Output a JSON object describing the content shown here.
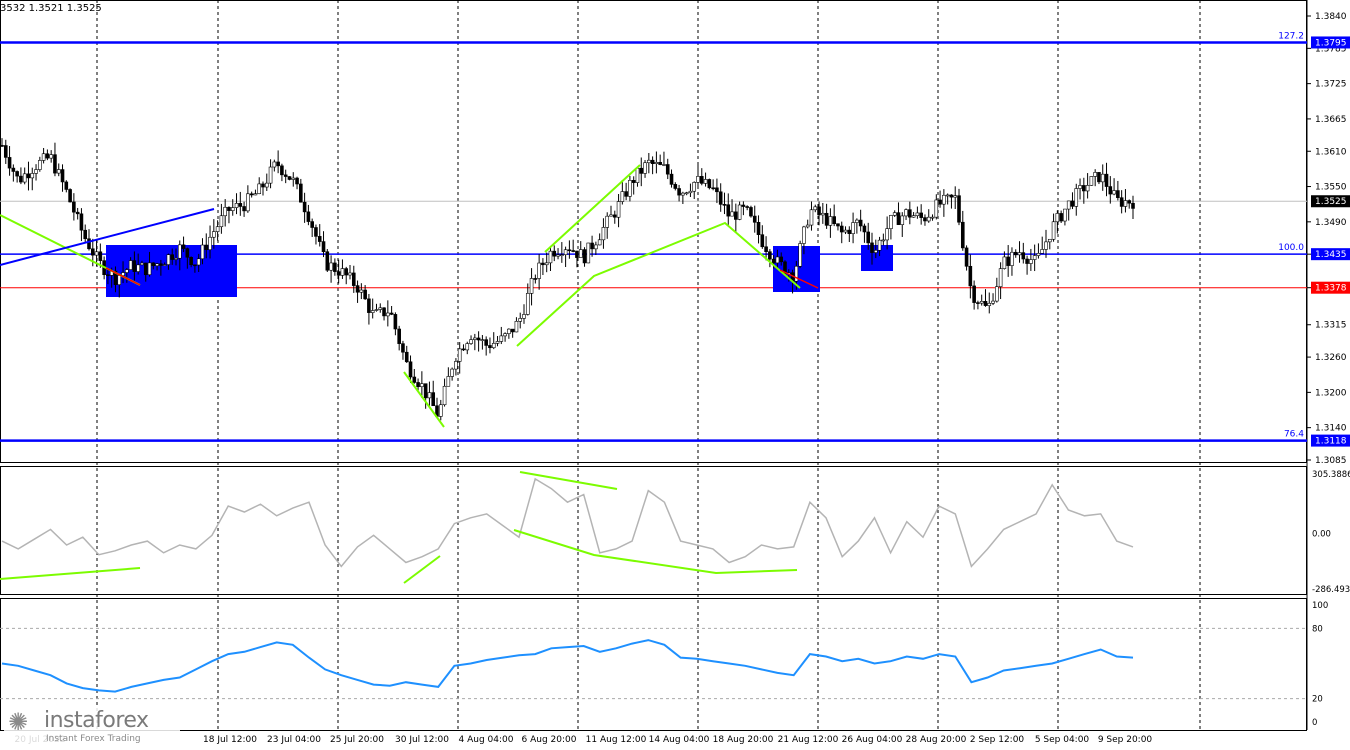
{
  "header": {
    "quote": "3532 1.3521 1.3525"
  },
  "colors": {
    "level": "#0000ff",
    "price_line": "#ff0000",
    "green": "#7cfc00",
    "cci": "#b4b4b4",
    "rsi": "#1e90ff",
    "candle": "#000000",
    "box": "#0000ff"
  },
  "logo": {
    "name": "instaforex",
    "tagline": "Instant Forex Trading",
    "icon": "gear-logo-icon"
  },
  "chart_data": [
    {
      "type": "candlestick",
      "symbol_quote": "3532 1.3521 1.3525",
      "ylim": [
        1.3055,
        1.387
      ],
      "y_ticks": [
        "1.3840",
        "1.3785",
        "1.3725",
        "1.3665",
        "1.3610",
        "1.3550",
        "1.3490",
        "1.3435",
        "1.3378",
        "1.3315",
        "1.3260",
        "1.3200",
        "1.3140",
        "1.3085"
      ],
      "x_ticks": [
        "20 Jul 2022",
        "18 Jul 12:00",
        "23 Jul 04:00",
        "25 Jul 20:00",
        "30 Jul 12:00",
        "4 Aug 04:00",
        "6 Aug 20:00",
        "11 Aug 12:00",
        "14 Aug 04:00",
        "18 Aug 20:00",
        "21 Aug 12:00",
        "26 Aug 04:00",
        "28 Aug 20:00",
        "2 Sep 12:00",
        "5 Sep 04:00",
        "9 Sep 20:00"
      ],
      "current_price": "1.3525",
      "price_line": "1.3378",
      "fib_levels": [
        {
          "ratio": "127.2",
          "value": "1.3795"
        },
        {
          "ratio": "100.0",
          "value": "1.3435"
        },
        {
          "ratio": "76.4",
          "value": "1.3118"
        }
      ],
      "close_path": [
        1.362,
        1.356,
        1.3585,
        1.36,
        1.354,
        1.347,
        1.342,
        1.3395,
        1.3415,
        1.341,
        1.3425,
        1.3445,
        1.342,
        1.347,
        1.351,
        1.352,
        1.3545,
        1.359,
        1.356,
        1.35,
        1.342,
        1.3405,
        1.338,
        1.333,
        1.334,
        1.325,
        1.321,
        1.316,
        1.326,
        1.33,
        1.328,
        1.329,
        1.332,
        1.34,
        1.344,
        1.345,
        1.343,
        1.347,
        1.351,
        1.356,
        1.359,
        1.358,
        1.354,
        1.356,
        1.3545,
        1.35,
        1.351,
        1.346,
        1.342,
        1.34,
        1.351,
        1.3495,
        1.347,
        1.349,
        1.344,
        1.349,
        1.3505,
        1.3495,
        1.352,
        1.353,
        1.337,
        1.334,
        1.342,
        1.344,
        1.342,
        1.348,
        1.352,
        1.355,
        1.357,
        1.3525,
        1.3525
      ]
    },
    {
      "type": "line",
      "name": "CCI",
      "ylim": [
        -286.493,
        305.3886
      ],
      "y_ticks": [
        "305.3886",
        "0.00",
        "-286.493"
      ],
      "series": [
        {
          "values": [
            -40,
            -80,
            -30,
            20,
            -60,
            -20,
            -110,
            -90,
            -60,
            -40,
            -100,
            -60,
            -80,
            -10,
            140,
            110,
            150,
            90,
            130,
            160,
            -60,
            -170,
            -70,
            -10,
            -80,
            -150,
            -120,
            -80,
            50,
            80,
            100,
            40,
            -20,
            280,
            230,
            160,
            200,
            -100,
            -80,
            -40,
            220,
            160,
            -40,
            -60,
            -80,
            -150,
            -120,
            -60,
            -80,
            -70,
            160,
            80,
            -120,
            -40,
            80,
            -100,
            60,
            -20,
            140,
            100,
            -170,
            -80,
            20,
            60,
            100,
            250,
            120,
            90,
            100,
            -40,
            -70
          ]
        }
      ]
    },
    {
      "type": "line",
      "name": "RSI",
      "ylim": [
        0,
        100
      ],
      "y_ticks": [
        "100",
        "80",
        "20",
        "0"
      ],
      "gridlines": [
        80,
        20
      ],
      "series": [
        {
          "values": [
            50,
            48,
            44,
            40,
            33,
            29,
            27,
            26,
            30,
            33,
            36,
            38,
            45,
            52,
            58,
            60,
            64,
            68,
            66,
            55,
            45,
            40,
            36,
            32,
            31,
            34,
            32,
            30,
            48,
            50,
            53,
            55,
            57,
            58,
            63,
            64,
            65,
            60,
            63,
            67,
            70,
            66,
            55,
            54,
            52,
            50,
            48,
            45,
            42,
            40,
            58,
            56,
            52,
            54,
            50,
            52,
            56,
            54,
            58,
            56,
            34,
            38,
            44,
            46,
            48,
            50,
            54,
            58,
            62,
            56,
            55
          ]
        }
      ]
    }
  ]
}
